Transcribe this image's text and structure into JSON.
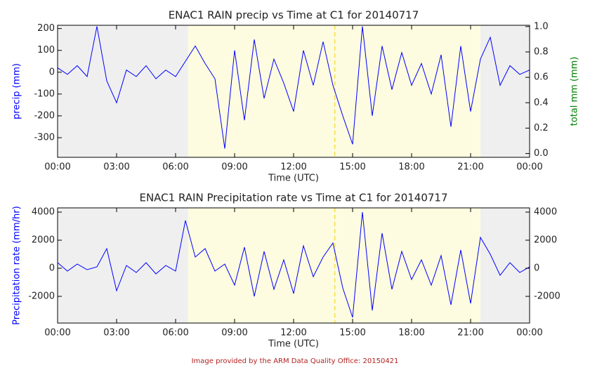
{
  "chart_data": [
    {
      "type": "line",
      "title": "ENAC1 RAIN precip vs Time at C1 for 20140717",
      "x_label": "Time (UTC)",
      "y_label": "precip (mm)",
      "y2_label": "total mm (mm)",
      "y_label_color": "#0000ff",
      "y2_label_color": "#008000",
      "x": [
        0,
        0.5,
        1,
        1.5,
        2,
        2.5,
        3,
        3.5,
        4,
        4.5,
        5,
        5.5,
        6,
        6.5,
        7,
        7.5,
        8,
        8.5,
        9,
        9.5,
        10,
        10.5,
        11,
        11.5,
        12,
        12.5,
        13,
        13.5,
        14,
        14.5,
        15,
        15.5,
        16,
        16.5,
        17,
        17.5,
        18,
        18.5,
        19,
        19.5,
        20,
        20.5,
        21,
        21.5,
        22,
        22.5,
        23,
        23.5,
        24
      ],
      "values": [
        20,
        -10,
        30,
        -20,
        210,
        -40,
        -140,
        10,
        -20,
        30,
        -30,
        10,
        -20,
        50,
        120,
        40,
        -30,
        -350,
        100,
        -220,
        150,
        -120,
        60,
        -50,
        -180,
        100,
        -60,
        140,
        -60,
        -200,
        -330,
        210,
        -200,
        120,
        -80,
        90,
        -60,
        40,
        -100,
        80,
        -250,
        120,
        -180,
        60,
        160,
        -60,
        30,
        -10,
        10
      ],
      "color": "#0000ff",
      "xlim": [
        0,
        24
      ],
      "xticks": [
        {
          "value": 0,
          "label": "00:00"
        },
        {
          "value": 3,
          "label": "03:00"
        },
        {
          "value": 6,
          "label": "06:00"
        },
        {
          "value": 9,
          "label": "09:00"
        },
        {
          "value": 12,
          "label": "12:00"
        },
        {
          "value": 15,
          "label": "15:00"
        },
        {
          "value": 18,
          "label": "18:00"
        },
        {
          "value": 21,
          "label": "21:00"
        },
        {
          "value": 24,
          "label": "00:00"
        }
      ],
      "ylim": [
        -390,
        215
      ],
      "yticks": [
        -300,
        -200,
        -100,
        0,
        100,
        200
      ],
      "y2lim": [
        -0.03,
        1.01
      ],
      "y2ticks": [
        {
          "value": 0,
          "label": "0.0"
        },
        {
          "value": 0.2,
          "label": "0.2"
        },
        {
          "value": 0.4,
          "label": "0.4"
        },
        {
          "value": 0.6,
          "label": "0.6"
        },
        {
          "value": 0.8,
          "label": "0.8"
        },
        {
          "value": 1,
          "label": "1.0"
        }
      ],
      "regions": [
        {
          "start": 0,
          "end": 6.64,
          "color": "#efefef"
        },
        {
          "start": 6.64,
          "end": 21.5,
          "color": "#fdfce0"
        },
        {
          "start": 21.5,
          "end": 24,
          "color": "#efefef"
        }
      ],
      "vline": {
        "x": 14.1,
        "color": "#f0d000"
      }
    },
    {
      "type": "line",
      "title": "ENAC1 RAIN Precipitation rate vs Time at C1 for 20140717",
      "x_label": "Time (UTC)",
      "y_label": "Precipitation rate (mm/hr)",
      "y_label_color": "#0000ff",
      "x": [
        0,
        0.5,
        1,
        1.5,
        2,
        2.5,
        3,
        3.5,
        4,
        4.5,
        5,
        5.5,
        6,
        6.5,
        7,
        7.5,
        8,
        8.5,
        9,
        9.5,
        10,
        10.5,
        11,
        11.5,
        12,
        12.5,
        13,
        13.5,
        14,
        14.5,
        15,
        15.5,
        16,
        16.5,
        17,
        17.5,
        18,
        18.5,
        19,
        19.5,
        20,
        20.5,
        21,
        21.5,
        22,
        22.5,
        23,
        23.5,
        24
      ],
      "values": [
        400,
        -200,
        300,
        -100,
        100,
        1400,
        -1600,
        200,
        -300,
        400,
        -400,
        200,
        -200,
        3400,
        800,
        1400,
        -200,
        300,
        -1200,
        1500,
        -2000,
        1200,
        -1500,
        600,
        -1800,
        1600,
        -600,
        800,
        1800,
        -1400,
        -3500,
        4000,
        -3000,
        2500,
        -1500,
        1200,
        -800,
        600,
        -1200,
        900,
        -2600,
        1300,
        -2500,
        2200,
        1000,
        -500,
        400,
        -300,
        100
      ],
      "color": "#0000ff",
      "xlim": [
        0,
        24
      ],
      "xticks": [
        {
          "value": 0,
          "label": "00:00"
        },
        {
          "value": 3,
          "label": "03:00"
        },
        {
          "value": 6,
          "label": "06:00"
        },
        {
          "value": 9,
          "label": "09:00"
        },
        {
          "value": 12,
          "label": "12:00"
        },
        {
          "value": 15,
          "label": "15:00"
        },
        {
          "value": 18,
          "label": "18:00"
        },
        {
          "value": 21,
          "label": "21:00"
        },
        {
          "value": 24,
          "label": "00:00"
        }
      ],
      "ylim": [
        -3900,
        4300
      ],
      "yticks": [
        -2000,
        0,
        2000,
        4000
      ],
      "y2lim": [
        -3900,
        4300
      ],
      "y2ticks": [
        -2000,
        0,
        2000,
        4000
      ],
      "regions": [
        {
          "start": 0,
          "end": 6.64,
          "color": "#efefef"
        },
        {
          "start": 6.64,
          "end": 21.5,
          "color": "#fdfce0"
        },
        {
          "start": 21.5,
          "end": 24,
          "color": "#efefef"
        }
      ],
      "vline": {
        "x": 14.1,
        "color": "#f0d000"
      }
    }
  ],
  "footer": "Image provided by the ARM Data Quality Office: 20150421"
}
